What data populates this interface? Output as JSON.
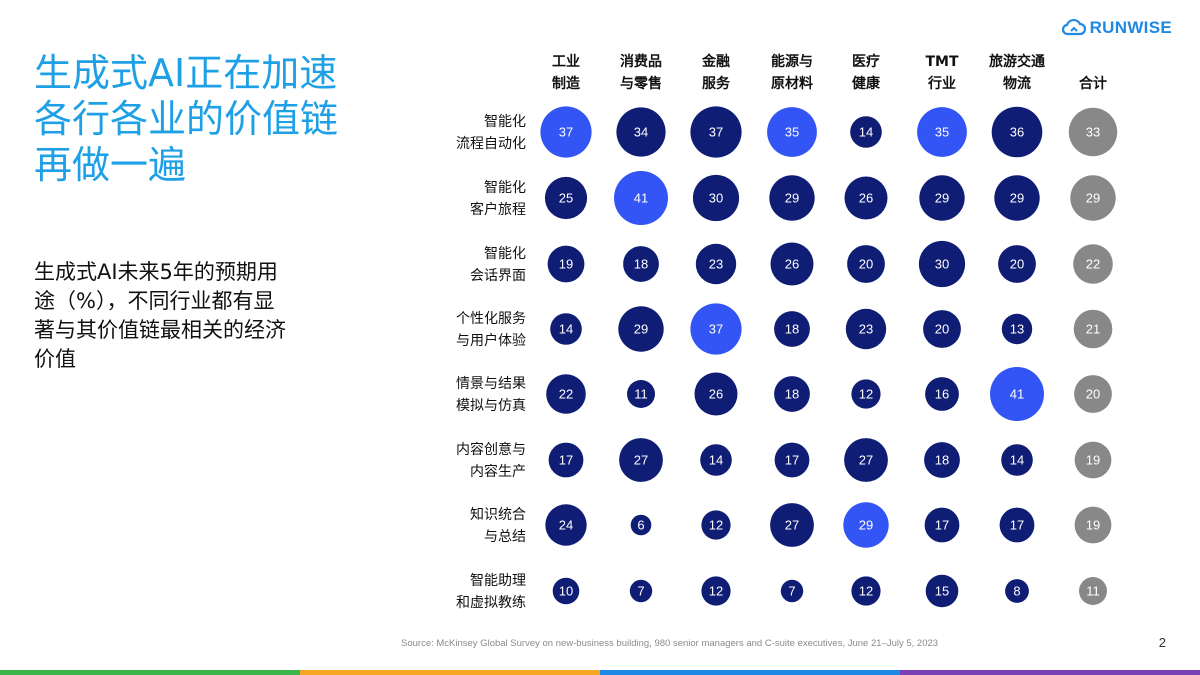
{
  "brand": {
    "name": "RUNWISE",
    "logo_icon": "cloud-logo-icon",
    "color": "#1e88e5"
  },
  "title_lines": [
    "生成式AI正在加速",
    "各行各业的价值链",
    "再做一遍"
  ],
  "subtitle_lines": [
    "生成式AI未来5年的预期用",
    "途（%），不同行业都有显",
    "著与其价值链最相关的经济",
    "价值"
  ],
  "source": "Source: McKinsey Global Survey on new-business building, 980 senior managers and C-suite executives, June 21–July 5, 2023",
  "page_number": "2",
  "colors": {
    "navy": "#0f1d74",
    "highlight": "#3355f5",
    "total": "#888888",
    "footer": [
      "#3cb54a",
      "#f5a623",
      "#1e88e5",
      "#7b3fb5"
    ]
  },
  "chart_data": {
    "type": "bubble-matrix",
    "columns": [
      [
        "工业",
        "制造"
      ],
      [
        "消费品",
        "与零售"
      ],
      [
        "金融",
        "服务"
      ],
      [
        "能源与",
        "原材料"
      ],
      [
        "医疗",
        "健康"
      ],
      [
        "TMT",
        "行业"
      ],
      [
        "旅游交通",
        "物流"
      ],
      [
        "合计"
      ]
    ],
    "rows": [
      [
        "智能化",
        "流程自动化"
      ],
      [
        "智能化",
        "客户旅程"
      ],
      [
        "智能化",
        "会话界面"
      ],
      [
        "个性化服务",
        "与用户体验"
      ],
      [
        "情景与结果",
        "模拟与仿真"
      ],
      [
        "内容创意与",
        "内容生产"
      ],
      [
        "知识统合",
        "与总结"
      ],
      [
        "智能助理",
        "和虚拟教练"
      ]
    ],
    "values": [
      [
        37,
        34,
        37,
        35,
        14,
        35,
        36,
        33
      ],
      [
        25,
        41,
        30,
        29,
        26,
        29,
        29,
        29
      ],
      [
        19,
        18,
        23,
        26,
        20,
        30,
        20,
        22
      ],
      [
        14,
        29,
        37,
        18,
        23,
        20,
        13,
        21
      ],
      [
        22,
        11,
        26,
        18,
        12,
        16,
        41,
        20
      ],
      [
        17,
        27,
        14,
        17,
        27,
        18,
        14,
        19
      ],
      [
        24,
        6,
        12,
        27,
        29,
        17,
        17,
        19
      ],
      [
        10,
        7,
        12,
        7,
        12,
        15,
        8,
        11
      ]
    ],
    "highlighted": [
      [
        0,
        0
      ],
      [
        0,
        3
      ],
      [
        0,
        5
      ],
      [
        1,
        1
      ],
      [
        3,
        2
      ],
      [
        4,
        6
      ],
      [
        6,
        4
      ]
    ],
    "total_column_index": 7,
    "unit": "%"
  }
}
